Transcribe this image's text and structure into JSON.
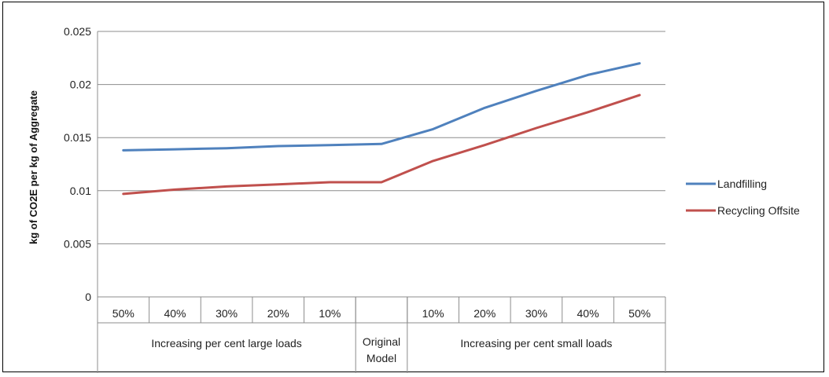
{
  "chart_data": {
    "type": "line",
    "title": "",
    "xlabel": "",
    "ylabel": "kg of CO2E per kg of Aggregate",
    "ylim": [
      0,
      0.025
    ],
    "yticks": [
      "0",
      "0.005",
      "0.01",
      "0.015",
      "0.02",
      "0.025"
    ],
    "grid": true,
    "legend_position": "right",
    "categories": [
      "50%",
      "40%",
      "30%",
      "20%",
      "10%",
      "",
      "10%",
      "20%",
      "30%",
      "40%",
      "50%"
    ],
    "groups": [
      {
        "label": "Increasing per cent large loads",
        "span": 5
      },
      {
        "label": "Original Model",
        "span": 1
      },
      {
        "label": "Increasing per cent small loads",
        "span": 5
      }
    ],
    "series": [
      {
        "name": "Landfilling",
        "color": "#4F81BD",
        "values": [
          0.0138,
          0.0139,
          0.014,
          0.0142,
          0.0143,
          0.0144,
          0.0158,
          0.0178,
          0.0194,
          0.0209,
          0.022
        ]
      },
      {
        "name": "Recycling Offsite",
        "color": "#C0504D",
        "values": [
          0.0097,
          0.0101,
          0.0104,
          0.0106,
          0.0108,
          0.0108,
          0.0128,
          0.0143,
          0.0159,
          0.0174,
          0.019
        ]
      }
    ]
  }
}
